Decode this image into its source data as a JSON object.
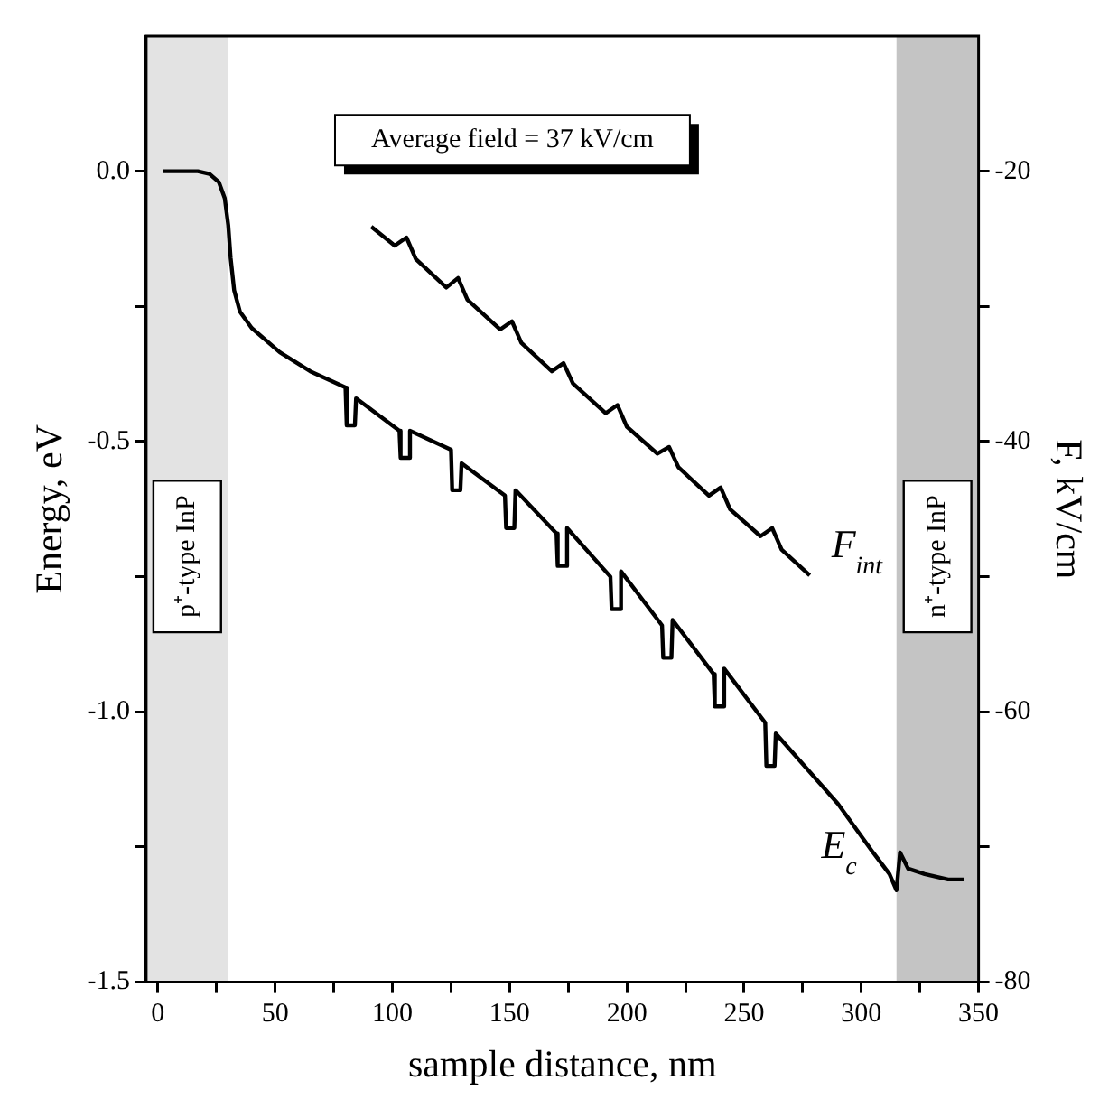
{
  "chart_data": {
    "type": "line",
    "xlabel": "sample distance, nm",
    "ylabel": "Energy, eV",
    "y2label": "F, kV/cm",
    "annotations": [
      "Average field = 37 kV/cm"
    ],
    "xlim": [
      -5,
      350
    ],
    "xticks": [
      0,
      {
        "value": 25,
        "label": null
      },
      50,
      {
        "value": 75,
        "label": null
      },
      100,
      {
        "value": 125,
        "label": null
      },
      150,
      {
        "value": 175,
        "label": null
      },
      200,
      {
        "value": 225,
        "label": null
      },
      250,
      {
        "value": 275,
        "label": null
      },
      300,
      {
        "value": 325,
        "label": null
      },
      350
    ],
    "ylim": [
      -1.5,
      0.25
    ],
    "yticks": [
      -1.5,
      {
        "value": -1.25,
        "label": null
      },
      {
        "value": -1,
        "label": "-1.0"
      },
      {
        "value": -0.75,
        "label": null
      },
      -0.5,
      {
        "value": -0.25,
        "label": null
      },
      {
        "value": 0,
        "label": "0.0"
      }
    ],
    "y2lim": [
      -80,
      -10
    ],
    "y2ticks": [
      -80,
      {
        "value": -70,
        "label": null
      },
      -60,
      {
        "value": -50,
        "label": null
      },
      -40,
      {
        "value": -30,
        "label": null
      },
      -20
    ],
    "series": [
      {
        "name": "E$_{c}$",
        "color": "#000000",
        "x": [
          2,
          17,
          22,
          26,
          28.5,
          30,
          31,
          32.5,
          35,
          40,
          52,
          65,
          80,
          80.5,
          84,
          84.5,
          103,
          103.5,
          107,
          107.5,
          125,
          125.5,
          129,
          129.5,
          148,
          148.5,
          152,
          152.5,
          170,
          170.5,
          174,
          174.5,
          193,
          193.5,
          197,
          197.5,
          215,
          215.5,
          219,
          219.5,
          237,
          237.5,
          241,
          241.5,
          259,
          259.5,
          263,
          263.5,
          290,
          305,
          312,
          315,
          316.5,
          320,
          327,
          337,
          344
        ],
        "values": [
          0,
          0,
          -0.005,
          -0.02,
          -0.05,
          -0.1,
          -0.16,
          -0.22,
          -0.26,
          -0.29,
          -0.335,
          -0.37,
          -0.4,
          -0.47,
          -0.47,
          -0.42,
          -0.48,
          -0.53,
          -0.53,
          -0.48,
          -0.515,
          -0.59,
          -0.59,
          -0.54,
          -0.6,
          -0.66,
          -0.66,
          -0.59,
          -0.67,
          -0.73,
          -0.73,
          -0.66,
          -0.75,
          -0.81,
          -0.81,
          -0.74,
          -0.84,
          -0.9,
          -0.9,
          -0.83,
          -0.93,
          -0.99,
          -0.99,
          -0.92,
          -1.02,
          -1.1,
          -1.1,
          -1.04,
          -1.17,
          -1.26,
          -1.3,
          -1.33,
          -1.26,
          -1.29,
          -1.3,
          -1.31,
          -1.31
        ]
      },
      {
        "name": "F$_{int}$",
        "color": "#000000",
        "axis": "y2",
        "x": [
          91,
          101,
          106,
          110,
          123,
          128,
          132,
          146,
          151,
          155,
          168,
          173,
          177,
          191,
          196,
          200,
          213,
          218,
          222,
          235,
          240,
          244,
          257,
          262,
          266,
          278
        ],
        "values": [
          -24.1,
          -25.5,
          -24.9,
          -26.5,
          -28.6,
          -27.9,
          -29.5,
          -31.7,
          -31.1,
          -32.7,
          -34.8,
          -34.2,
          -35.7,
          -37.9,
          -37.3,
          -38.9,
          -40.9,
          -40.4,
          -41.9,
          -44.0,
          -43.4,
          -45.0,
          -47.0,
          -46.4,
          -48.0,
          -49.9
        ]
      }
    ],
    "bands": [
      {
        "axis": "x",
        "from": -5,
        "to": 30,
        "label": "p⁺-type InP",
        "color": "#e3e3e3"
      },
      {
        "axis": "x",
        "from": 315,
        "to": 350,
        "label": "n⁺-type InP",
        "color": "#c4c4c4"
      }
    ],
    "marker": "none",
    "line_style": "solid",
    "grid": false,
    "legend": false
  }
}
